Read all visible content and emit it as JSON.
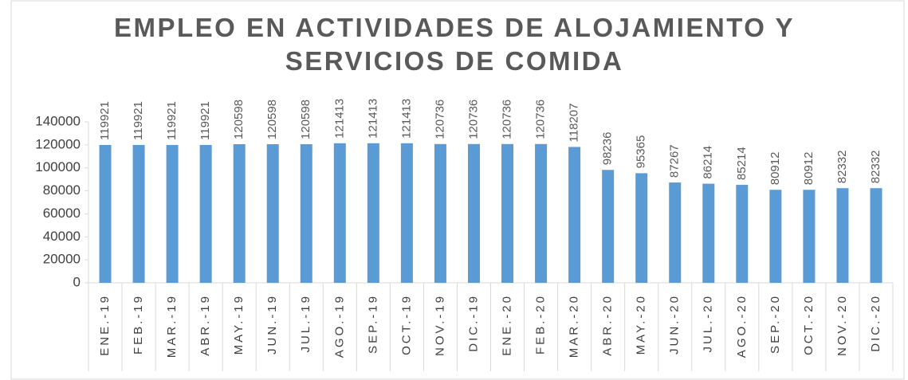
{
  "chart_data": {
    "type": "bar",
    "title": "EMPLEO EN ACTIVIDADES DE ALOJAMIENTO Y SERVICIOS DE COMIDA",
    "categories": [
      "ENE.-19",
      "FEB.-19",
      "MAR.-19",
      "ABR.-19",
      "MAY.-19",
      "JUN.-19",
      "JUL.-19",
      "AGO.-19",
      "SEP.-19",
      "OCT.-19",
      "NOV.-19",
      "DIC.-19",
      "ENE.-20",
      "FEB.-20",
      "MAR.-20",
      "ABR.-20",
      "MAY.-20",
      "JUN.-20",
      "JUL.-20",
      "AGO.-20",
      "SEP.-20",
      "OCT.-20",
      "NOV.-20",
      "DIC.-20"
    ],
    "values": [
      119921,
      119921,
      119921,
      119921,
      120598,
      120598,
      120598,
      121413,
      121413,
      121413,
      120736,
      120736,
      120736,
      120736,
      118207,
      98236,
      95365,
      87267,
      86214,
      85214,
      80912,
      80912,
      82332,
      82332
    ],
    "color": "#5b9bd5",
    "ylim": [
      0,
      140000
    ],
    "yticks": [
      0,
      20000,
      40000,
      60000,
      80000,
      100000,
      120000,
      140000
    ]
  }
}
